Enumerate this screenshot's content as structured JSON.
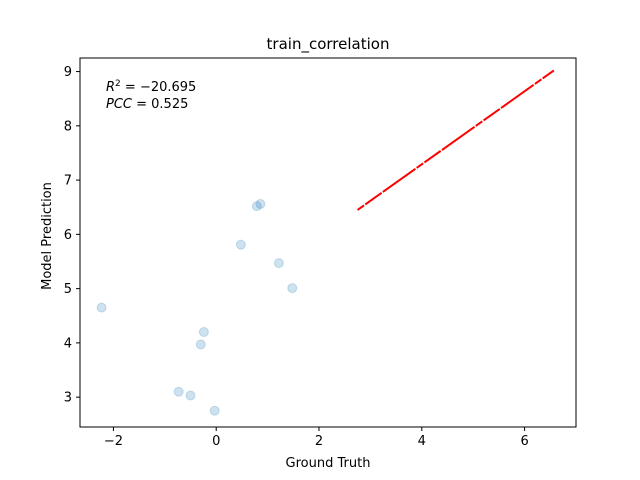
{
  "chart_data": {
    "type": "scatter",
    "title": "train_correlation",
    "xlabel": "Ground Truth",
    "ylabel": "Model Prediction",
    "xlim": [
      -2.65,
      7.0
    ],
    "ylim": [
      2.45,
      9.25
    ],
    "xticks": [
      -2,
      0,
      2,
      4,
      6
    ],
    "yticks": [
      3,
      4,
      5,
      6,
      7,
      8,
      9
    ],
    "grid": false,
    "annotations": {
      "r2_prefix": "R",
      "r2_sup": "2",
      "r2_value": " = −20.695",
      "pcc_prefix": "PCC",
      "pcc_value": " = 0.525"
    },
    "points": [
      {
        "x": -2.23,
        "y": 4.65
      },
      {
        "x": -0.73,
        "y": 3.1
      },
      {
        "x": -0.5,
        "y": 3.03
      },
      {
        "x": -0.3,
        "y": 3.97
      },
      {
        "x": -0.24,
        "y": 4.2
      },
      {
        "x": -0.03,
        "y": 2.75
      },
      {
        "x": 0.48,
        "y": 5.81
      },
      {
        "x": 0.79,
        "y": 6.52
      },
      {
        "x": 0.86,
        "y": 6.56
      },
      {
        "x": 1.22,
        "y": 5.47
      },
      {
        "x": 1.48,
        "y": 5.01
      }
    ],
    "fit_line": {
      "x": [
        2.75,
        6.57
      ],
      "y": [
        6.45,
        9.02
      ],
      "color": "#ff0000"
    },
    "point_color": "#1f77b4"
  }
}
